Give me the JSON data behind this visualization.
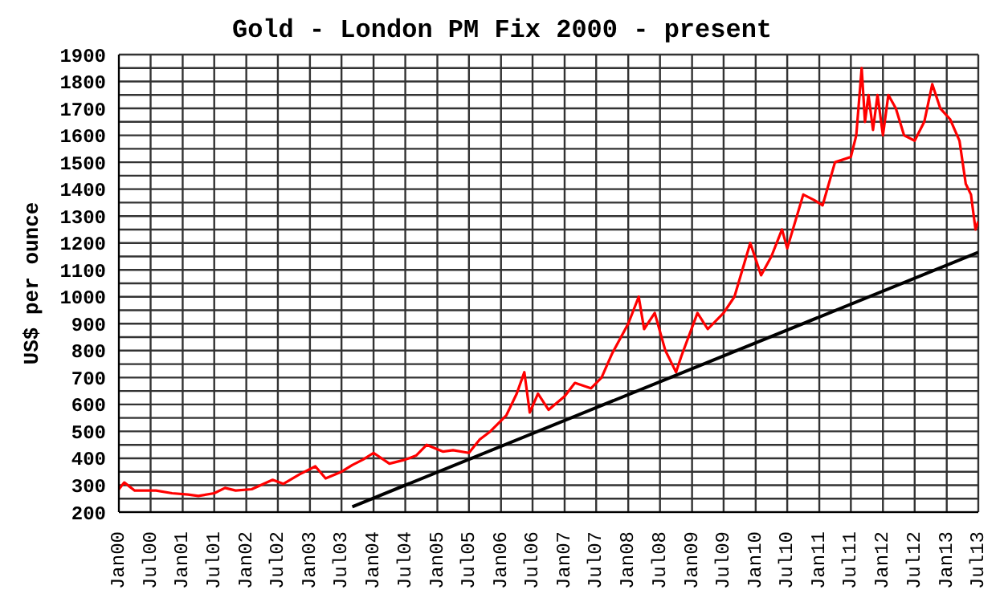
{
  "chart_data": {
    "type": "line",
    "title": "Gold - London PM Fix 2000 - present",
    "ylabel": "US$ per ounce",
    "xlim": [
      "2000-01",
      "2013-07"
    ],
    "xticks": [
      {
        "value": "2000-01",
        "label": "Jan00"
      },
      {
        "value": "2000-07",
        "label": "Jul00"
      },
      {
        "value": "2001-01",
        "label": "Jan01"
      },
      {
        "value": "2001-07",
        "label": "Jul01"
      },
      {
        "value": "2002-01",
        "label": "Jan02"
      },
      {
        "value": "2002-07",
        "label": "Jul02"
      },
      {
        "value": "2003-01",
        "label": "Jan03"
      },
      {
        "value": "2003-07",
        "label": "Jul03"
      },
      {
        "value": "2004-01",
        "label": "Jan04"
      },
      {
        "value": "2004-07",
        "label": "Jul04"
      },
      {
        "value": "2005-01",
        "label": "Jan05"
      },
      {
        "value": "2005-07",
        "label": "Jul05"
      },
      {
        "value": "2006-01",
        "label": "Jan06"
      },
      {
        "value": "2006-07",
        "label": "Jul06"
      },
      {
        "value": "2007-01",
        "label": "Jan07"
      },
      {
        "value": "2007-07",
        "label": "Jul07"
      },
      {
        "value": "2008-01",
        "label": "Jan08"
      },
      {
        "value": "2008-07",
        "label": "Jul08"
      },
      {
        "value": "2009-01",
        "label": "Jan09"
      },
      {
        "value": "2009-07",
        "label": "Jul09"
      },
      {
        "value": "2010-01",
        "label": "Jan10"
      },
      {
        "value": "2010-07",
        "label": "Jul10"
      },
      {
        "value": "2011-01",
        "label": "Jan11"
      },
      {
        "value": "2011-07",
        "label": "Jul11"
      },
      {
        "value": "2012-01",
        "label": "Jan12"
      },
      {
        "value": "2012-07",
        "label": "Jul12"
      },
      {
        "value": "2013-01",
        "label": "Jan13"
      },
      {
        "value": "2013-07",
        "label": "Jul13"
      }
    ],
    "ylim": [
      200,
      1900
    ],
    "yticks": [
      200,
      {
        "value": 250,
        "label": null
      },
      300,
      {
        "value": 350,
        "label": null
      },
      400,
      {
        "value": 450,
        "label": null
      },
      500,
      {
        "value": 550,
        "label": null
      },
      600,
      {
        "value": 650,
        "label": null
      },
      700,
      {
        "value": 750,
        "label": null
      },
      800,
      {
        "value": 850,
        "label": null
      },
      900,
      {
        "value": 950,
        "label": null
      },
      1000,
      {
        "value": 1050,
        "label": null
      },
      1100,
      {
        "value": 1150,
        "label": null
      },
      1200,
      {
        "value": 1250,
        "label": null
      },
      1300,
      {
        "value": 1350,
        "label": null
      },
      1400,
      {
        "value": 1450,
        "label": null
      },
      1500,
      {
        "value": 1550,
        "label": null
      },
      1600,
      {
        "value": 1650,
        "label": null
      },
      1700,
      {
        "value": 1750,
        "label": null
      },
      1800,
      {
        "value": 1850,
        "label": null
      },
      1900
    ],
    "grid": true,
    "marker": "none",
    "line_style": "solid",
    "series": [
      {
        "color": "#ff0000",
        "x": [
          "2000-01",
          "2000-02",
          "2000-04",
          "2000-08",
          "2000-11",
          "2001-02",
          "2001-04",
          "2001-07",
          "2001-09",
          "2001-11",
          "2002-02",
          "2002-06",
          "2002-08",
          "2002-11",
          "2003-02",
          "2003-04",
          "2003-07",
          "2003-09",
          "2003-11",
          "2004-01",
          "2004-04",
          "2004-07",
          "2004-09",
          "2004-11",
          "2005-02",
          "2005-04",
          "2005-07",
          "2005-09",
          "2005-11",
          "2006-02",
          "2006-04",
          "2006-05-15",
          "2006-06-15",
          "2006-08",
          "2006-10",
          "2007-01",
          "2007-03",
          "2007-06",
          "2007-08",
          "2007-10",
          "2008-01",
          "2008-03",
          "2008-04",
          "2008-06",
          "2008-08",
          "2008-10",
          "2008-11",
          "2009-02",
          "2009-04",
          "2009-07",
          "2009-09",
          "2009-12",
          "2010-02",
          "2010-04",
          "2010-06",
          "2010-07",
          "2010-10",
          "2010-12",
          "2011-01-20",
          "2011-04",
          "2011-07",
          "2011-08",
          "2011-09-01",
          "2011-09-20",
          "2011-10-10",
          "2011-11-05",
          "2011-12-01",
          "2012-01",
          "2012-02",
          "2012-03-15",
          "2012-05",
          "2012-07",
          "2012-08-25",
          "2012-10-10",
          "2012-11-25",
          "2013-01-20",
          "2013-03-15",
          "2013-04-20",
          "2013-05-20",
          "2013-06-15",
          "2013-07"
        ],
        "values": [
          285,
          310,
          280,
          280,
          270,
          265,
          260,
          270,
          290,
          280,
          285,
          320,
          305,
          340,
          370,
          325,
          350,
          375,
          395,
          420,
          380,
          395,
          410,
          450,
          425,
          430,
          420,
          470,
          500,
          560,
          640,
          720,
          570,
          640,
          580,
          630,
          680,
          660,
          700,
          790,
          900,
          1000,
          880,
          940,
          800,
          720,
          780,
          940,
          880,
          940,
          1000,
          1200,
          1080,
          1150,
          1250,
          1180,
          1380,
          1360,
          1340,
          1500,
          1520,
          1600,
          1850,
          1650,
          1750,
          1620,
          1750,
          1600,
          1750,
          1700,
          1600,
          1580,
          1650,
          1790,
          1700,
          1660,
          1580,
          1420,
          1380,
          1250,
          1280
        ]
      },
      {
        "color": "#000000",
        "x": [
          "2003-09",
          "2013-07"
        ],
        "values": [
          220,
          1165
        ]
      }
    ]
  }
}
